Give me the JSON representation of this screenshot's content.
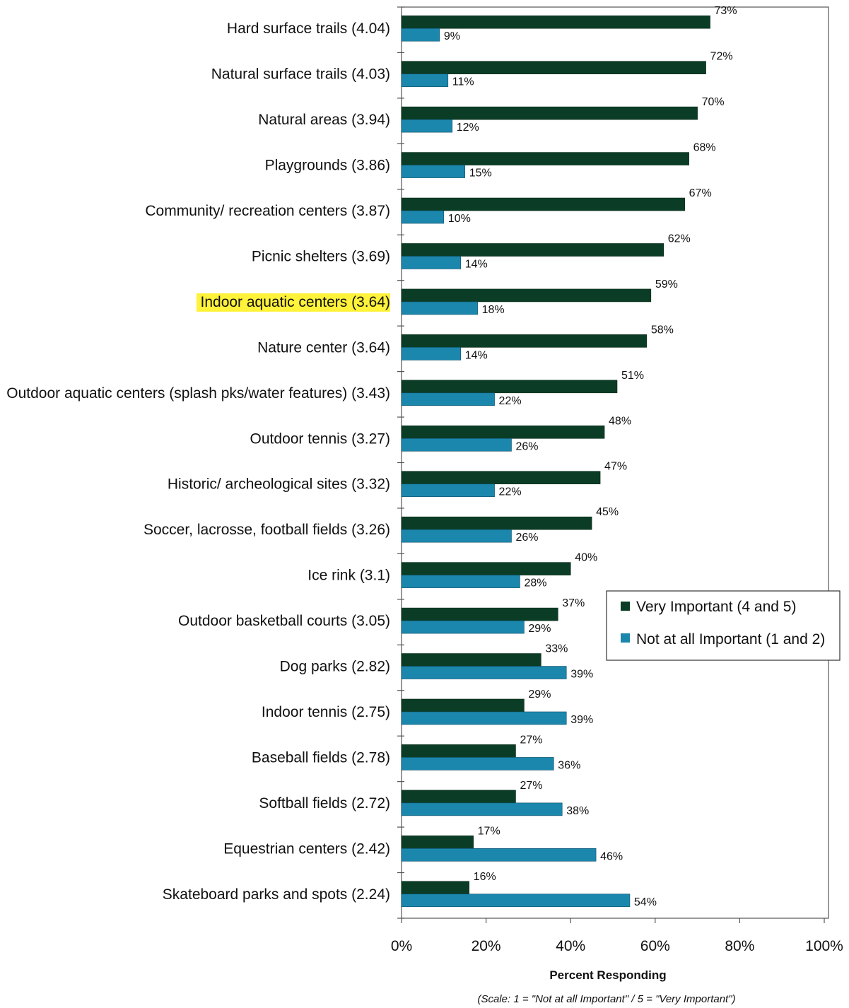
{
  "chart_data": {
    "type": "bar",
    "orientation": "horizontal",
    "categories": [
      "Hard surface trails (4.04)",
      "Natural surface trails (4.03)",
      "Natural areas (3.94)",
      "Playgrounds (3.86)",
      "Community/ recreation centers (3.87)",
      "Picnic shelters (3.69)",
      "Indoor aquatic centers (3.64)",
      "Nature center (3.64)",
      "Outdoor aquatic centers (splash pks/water features) (3.43)",
      "Outdoor tennis (3.27)",
      "Historic/ archeological sites (3.32)",
      "Soccer, lacrosse, football fields (3.26)",
      "Ice rink (3.1)",
      "Outdoor basketball courts (3.05)",
      "Dog parks (2.82)",
      "Indoor tennis (2.75)",
      "Baseball fields (2.78)",
      "Softball fields (2.72)",
      "Equestrian centers (2.42)",
      "Skateboard parks and spots (2.24)"
    ],
    "highlighted_category": "Indoor aquatic centers (3.64)",
    "highlight_color": "#fff23a",
    "series": [
      {
        "name": "Very Important (4 and 5)",
        "color": "#0b3d26",
        "values": [
          73,
          72,
          70,
          68,
          67,
          62,
          59,
          58,
          51,
          48,
          47,
          45,
          40,
          37,
          33,
          29,
          27,
          27,
          17,
          16
        ],
        "labels": [
          "73%",
          "72%",
          "70%",
          "68%",
          "67%",
          "62%",
          "59%",
          "58%",
          "51%",
          "48%",
          "47%",
          "45%",
          "40%",
          "37%",
          "33%",
          "29%",
          "27%",
          "27%",
          "17%",
          "16%"
        ]
      },
      {
        "name": "Not at all Important (1 and 2)",
        "color": "#1c87ad",
        "values": [
          9,
          11,
          12,
          15,
          10,
          14,
          18,
          14,
          22,
          26,
          22,
          26,
          28,
          29,
          39,
          39,
          36,
          38,
          46,
          54
        ],
        "labels": [
          "9%",
          "11%",
          "12%",
          "15%",
          "10%",
          "14%",
          "18%",
          "14%",
          "22%",
          "26%",
          "22%",
          "26%",
          "28%",
          "29%",
          "39%",
          "39%",
          "36%",
          "38%",
          "46%",
          "54%"
        ]
      }
    ],
    "xlim": [
      0,
      100
    ],
    "xticks": [
      "0%",
      "20%",
      "40%",
      "60%",
      "80%",
      "100%"
    ],
    "xlabel": "Percent Responding",
    "note": "(Scale: 1 = \"Not at all Important\" / 5 = \"Very Important\")",
    "legend_position": "right",
    "grid": false
  }
}
